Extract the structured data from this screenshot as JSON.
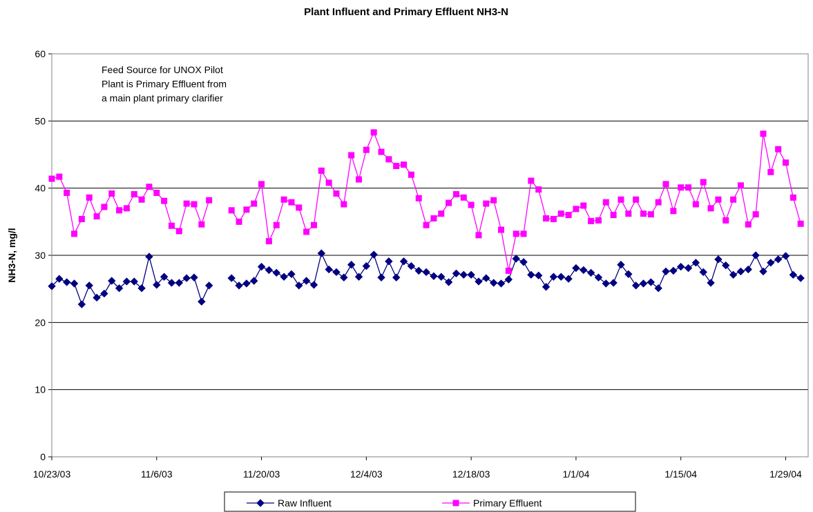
{
  "chart_data": {
    "type": "line",
    "title": "Plant Influent and Primary Effluent NH3-N",
    "y_label": "NH3-N, mg/l",
    "annotation": [
      "Feed Source for UNOX Pilot",
      "Plant is Primary Effluent from",
      "a main plant primary clarifier"
    ],
    "x": [
      "10/23/03",
      "10/24/03",
      "10/25/03",
      "10/26/03",
      "10/27/03",
      "10/28/03",
      "10/29/03",
      "10/30/03",
      "10/31/03",
      "11/1/03",
      "11/2/03",
      "11/3/03",
      "11/4/03",
      "11/5/03",
      "11/6/03",
      "11/7/03",
      "11/8/03",
      "11/9/03",
      "11/10/03",
      "11/11/03",
      "11/12/03",
      "11/13/03",
      "11/14/03",
      "11/15/03",
      "11/16/03",
      "11/17/03",
      "11/18/03",
      "11/19/03",
      "11/20/03",
      "11/21/03",
      "11/22/03",
      "11/23/03",
      "11/24/03",
      "11/25/03",
      "11/26/03",
      "11/27/03",
      "11/28/03",
      "11/29/03",
      "11/30/03",
      "12/1/03",
      "12/2/03",
      "12/3/03",
      "12/4/03",
      "12/5/03",
      "12/6/03",
      "12/7/03",
      "12/8/03",
      "12/9/03",
      "12/10/03",
      "12/11/03",
      "12/12/03",
      "12/13/03",
      "12/14/03",
      "12/15/03",
      "12/16/03",
      "12/17/03",
      "12/18/03",
      "12/19/03",
      "12/20/03",
      "12/21/03",
      "12/22/03",
      "12/23/03",
      "12/24/03",
      "12/25/03",
      "12/26/03",
      "12/27/03",
      "12/28/03",
      "12/29/03",
      "12/30/03",
      "12/31/03",
      "1/1/04",
      "1/2/04",
      "1/3/04",
      "1/4/04",
      "1/5/04",
      "1/6/04",
      "1/7/04",
      "1/8/04",
      "1/9/04",
      "1/10/04",
      "1/11/04",
      "1/12/04",
      "1/13/04",
      "1/14/04",
      "1/15/04",
      "1/16/04",
      "1/17/04",
      "1/18/04",
      "1/19/04",
      "1/20/04",
      "1/21/04",
      "1/22/04",
      "1/23/04",
      "1/24/04",
      "1/25/04",
      "1/26/04",
      "1/27/04",
      "1/28/04",
      "1/29/04",
      "1/30/04",
      "1/31/04"
    ],
    "series": [
      {
        "name": "Raw Influent",
        "color": "#000080",
        "marker": "diamond",
        "values": [
          25.4,
          26.5,
          26.0,
          25.8,
          22.7,
          25.5,
          23.7,
          24.3,
          26.2,
          25.1,
          26.1,
          26.1,
          25.1,
          29.8,
          25.6,
          26.8,
          25.9,
          25.9,
          26.6,
          26.7,
          23.1,
          25.5,
          null,
          null,
          26.6,
          25.5,
          25.8,
          26.2,
          28.3,
          27.8,
          27.4,
          26.8,
          27.2,
          25.5,
          26.2,
          25.6,
          30.3,
          27.9,
          27.5,
          26.7,
          28.6,
          26.8,
          28.4,
          30.1,
          26.7,
          29.1,
          26.7,
          29.1,
          28.4,
          27.7,
          27.5,
          26.9,
          26.8,
          26.0,
          27.3,
          27.1,
          27.1,
          26.1,
          26.6,
          25.9,
          25.8,
          26.4,
          29.5,
          29.0,
          27.1,
          27.0,
          25.3,
          26.8,
          26.8,
          26.5,
          28.1,
          27.8,
          27.4,
          26.7,
          25.8,
          25.9,
          28.6,
          27.2,
          25.5,
          25.8,
          26.0,
          25.1,
          27.6,
          27.7,
          28.3,
          28.1,
          28.9,
          27.5,
          25.9,
          29.4,
          28.5,
          27.1,
          27.6,
          27.9,
          30.0,
          27.6,
          28.9,
          29.4,
          29.9,
          27.1,
          26.6
        ]
      },
      {
        "name": "Primary Effluent",
        "color": "#ff00ff",
        "marker": "square",
        "values": [
          41.4,
          41.7,
          39.3,
          33.2,
          35.4,
          38.6,
          35.8,
          37.2,
          39.2,
          36.7,
          37.0,
          39.1,
          38.3,
          40.2,
          39.3,
          38.1,
          34.4,
          33.6,
          37.7,
          37.6,
          34.6,
          38.2,
          null,
          null,
          36.7,
          35.0,
          36.8,
          37.7,
          40.6,
          32.1,
          34.5,
          38.3,
          37.9,
          37.1,
          33.5,
          34.5,
          42.6,
          40.8,
          39.2,
          37.6,
          44.9,
          41.3,
          45.7,
          48.3,
          45.4,
          44.3,
          43.3,
          43.5,
          42.0,
          38.5,
          34.5,
          35.5,
          36.2,
          37.8,
          39.1,
          38.6,
          37.5,
          33.0,
          37.7,
          38.2,
          33.8,
          27.7,
          33.2,
          33.2,
          41.1,
          39.8,
          35.5,
          35.4,
          36.2,
          36.0,
          36.9,
          37.4,
          35.1,
          35.2,
          37.9,
          36.0,
          38.3,
          36.2,
          38.3,
          36.2,
          36.1,
          37.9,
          40.6,
          36.6,
          40.1,
          40.1,
          37.6,
          40.9,
          37.0,
          38.3,
          35.2,
          38.3,
          40.4,
          34.6,
          36.1,
          48.1,
          42.4,
          45.8,
          43.8,
          38.6,
          34.7
        ]
      }
    ],
    "xlim": [
      "10/23/03",
      "2/1/04"
    ],
    "xticks": [
      "10/23/03",
      "11/6/03",
      "11/20/03",
      "12/4/03",
      "12/18/03",
      "1/1/04",
      "1/15/04",
      "1/29/04"
    ],
    "ylim": [
      0,
      60
    ],
    "yticks": [
      0,
      10,
      20,
      30,
      40,
      50,
      60
    ],
    "grid": true
  }
}
